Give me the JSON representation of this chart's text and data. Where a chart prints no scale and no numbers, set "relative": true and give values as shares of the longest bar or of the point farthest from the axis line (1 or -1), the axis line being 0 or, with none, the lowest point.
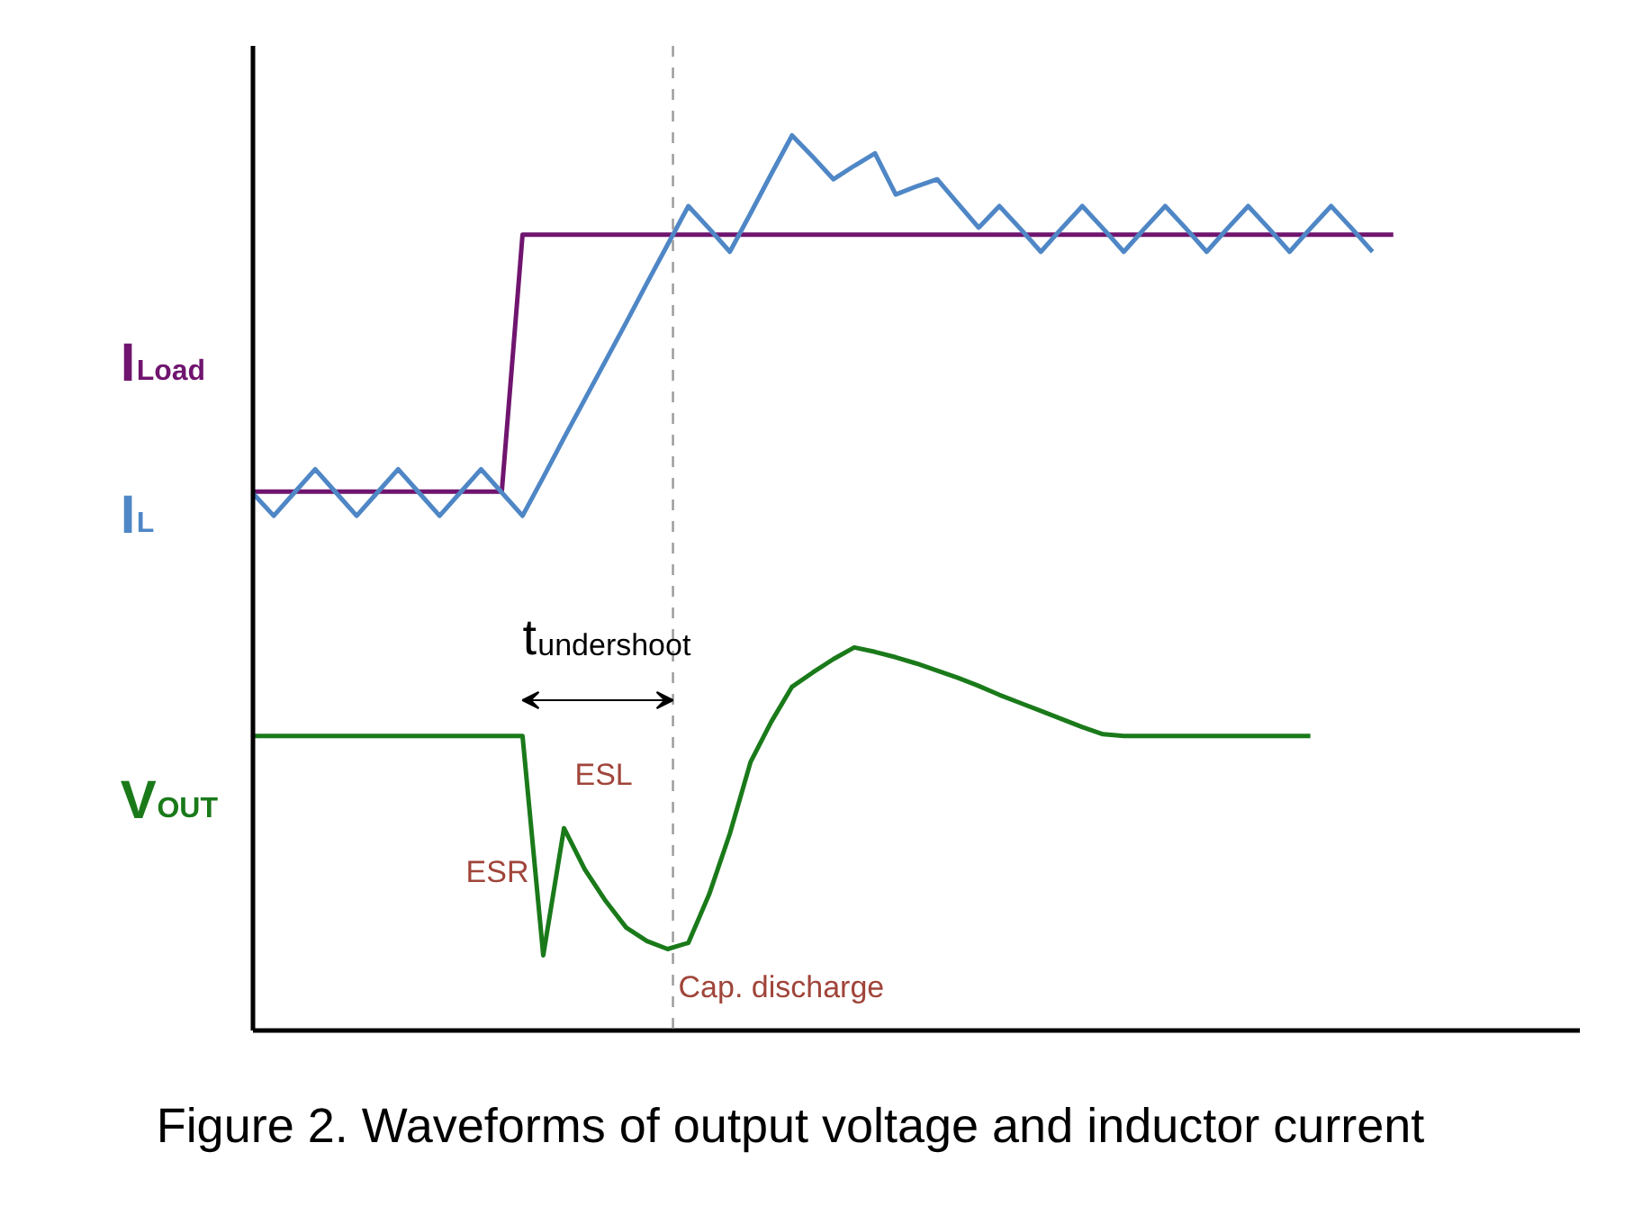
{
  "chart_data": {
    "type": "line",
    "relative": true,
    "title": "Figure 2. Waveforms of output voltage and inductor current",
    "categories": [
      null,
      null,
      null,
      null,
      null,
      null,
      null,
      null,
      null,
      null,
      null,
      null,
      null,
      null,
      null,
      null,
      null,
      null,
      null,
      null,
      null,
      null,
      null,
      null,
      null,
      null,
      null,
      null,
      null,
      null,
      null,
      null,
      null,
      null,
      null,
      null,
      null,
      null,
      null,
      null,
      null,
      null,
      null,
      null,
      null,
      null,
      null,
      null,
      null,
      null,
      null,
      null,
      null,
      null,
      null,
      null,
      null,
      null,
      null,
      null,
      null,
      null,
      null,
      null,
      null
    ],
    "tick_labels": false,
    "legend": false,
    "series": [
      {
        "name": "I$_{Load}$",
        "color": "#70156f",
        "values": [
          0.602,
          0.602,
          0.602,
          0.602,
          0.602,
          0.602,
          0.602,
          0.602,
          0.602,
          0.602,
          0.602,
          0.602,
          0.602,
          0.889,
          0.889,
          0.889,
          0.889,
          0.889,
          0.889,
          0.889,
          0.889,
          0.889,
          0.889,
          0.889,
          0.889,
          0.889,
          0.889,
          0.889,
          0.889,
          0.889,
          0.889,
          0.889,
          0.889,
          0.889,
          0.889,
          0.889,
          0.889,
          0.889,
          0.889,
          0.889,
          0.889,
          0.889,
          0.889,
          0.889,
          0.889,
          0.889,
          0.889,
          0.889,
          0.889,
          0.889,
          0.889,
          0.889,
          0.889,
          0.889,
          0.889,
          0.889,
          null,
          null,
          null,
          null,
          null,
          null,
          null,
          null,
          null
        ]
      },
      {
        "name": "I$_{L}$",
        "color": "#4f87c6",
        "values": [
          0.6,
          0.575,
          0.601,
          0.627,
          0.601,
          0.575,
          0.601,
          0.627,
          0.601,
          0.575,
          0.601,
          0.627,
          0.601,
          0.575,
          0.618,
          0.662,
          0.705,
          0.748,
          0.791,
          0.835,
          0.878,
          0.921,
          0.896,
          0.87,
          0.913,
          0.957,
          1.0,
          0.976,
          0.951,
          0.966,
          0.98,
          0.934,
          0.943,
          0.951,
          0.924,
          0.897,
          0.921,
          0.896,
          0.87,
          0.896,
          0.921,
          0.896,
          0.87,
          0.896,
          0.921,
          0.896,
          0.87,
          0.896,
          0.921,
          0.896,
          0.87,
          0.896,
          0.921,
          0.896,
          0.87,
          null,
          null,
          null,
          null,
          null,
          null,
          null,
          null,
          null,
          null
        ]
      },
      {
        "name": "V$_{OUT}$",
        "color": "#1a7a1a",
        "values": [
          0.329,
          0.329,
          0.329,
          0.329,
          0.329,
          0.329,
          0.329,
          0.329,
          0.329,
          0.329,
          0.329,
          0.329,
          0.329,
          0.329,
          0.084,
          0.226,
          0.18,
          0.145,
          0.115,
          0.1,
          0.091,
          0.098,
          0.152,
          0.22,
          0.3,
          0.345,
          0.384,
          0.4,
          0.415,
          0.428,
          0.423,
          0.417,
          0.41,
          0.402,
          0.394,
          0.385,
          0.375,
          0.366,
          0.357,
          0.348,
          0.339,
          0.331,
          0.329,
          0.329,
          0.329,
          0.329,
          0.329,
          0.329,
          0.329,
          0.329,
          0.329,
          0.329,
          null,
          null,
          null,
          null,
          null,
          null,
          null,
          null,
          null,
          null,
          null,
          null,
          null
        ]
      }
    ],
    "annotations": [
      "t$_{undershoot}$",
      "ESR",
      "ESL",
      "Cap. discharge"
    ]
  }
}
